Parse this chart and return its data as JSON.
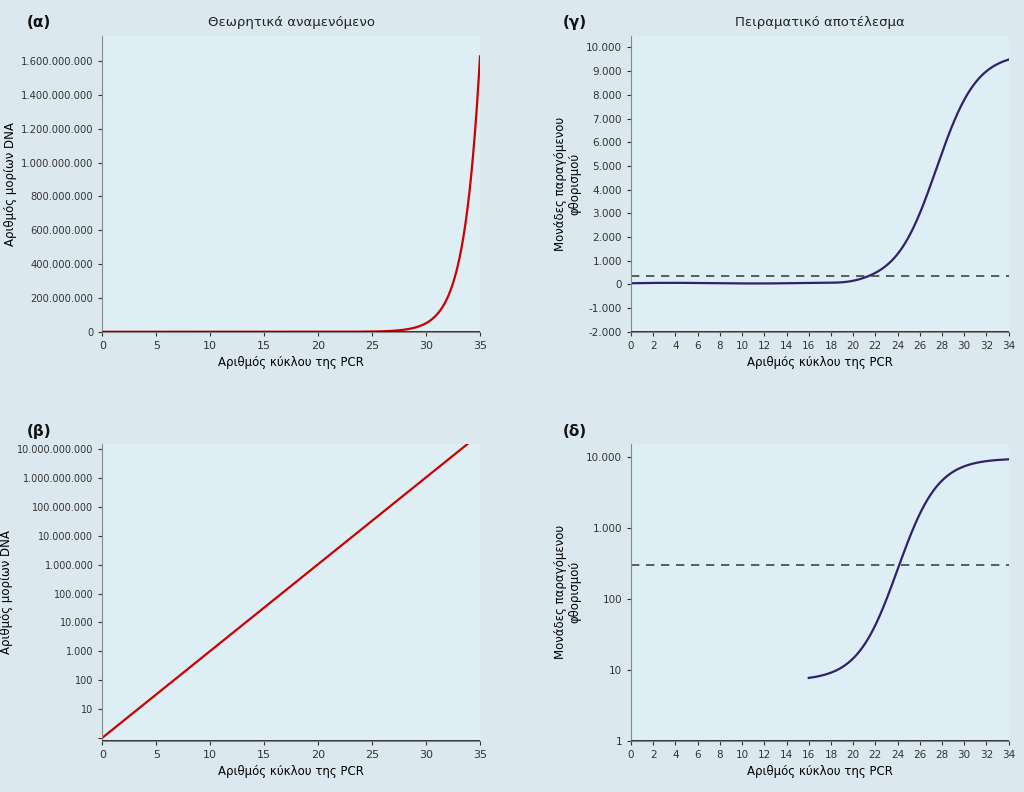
{
  "background_color": "#dce8f0",
  "panel_bg": "#ddeef5",
  "red_color": "#cc0000",
  "purple_color": "#32206a",
  "dashed_color": "#444444",
  "title_a": "Θεωρητικά αναμενόμενο",
  "title_g": "Πειραματικό αποτέλεσμα",
  "label_a": "(α)",
  "label_b": "(β)",
  "label_g": "(γ)",
  "label_d": "(δ)",
  "xlabel": "Αριθμός κύκλου της PCR",
  "ylabel_ab": "Αριθμός μορίων DNA",
  "ylabel_gd": "Μονάδες παραγόμενου\nφθορισμού",
  "threshold_linear": 350,
  "threshold_log": 300,
  "spine_color": "#888888",
  "bottom_line_color": "#222222"
}
